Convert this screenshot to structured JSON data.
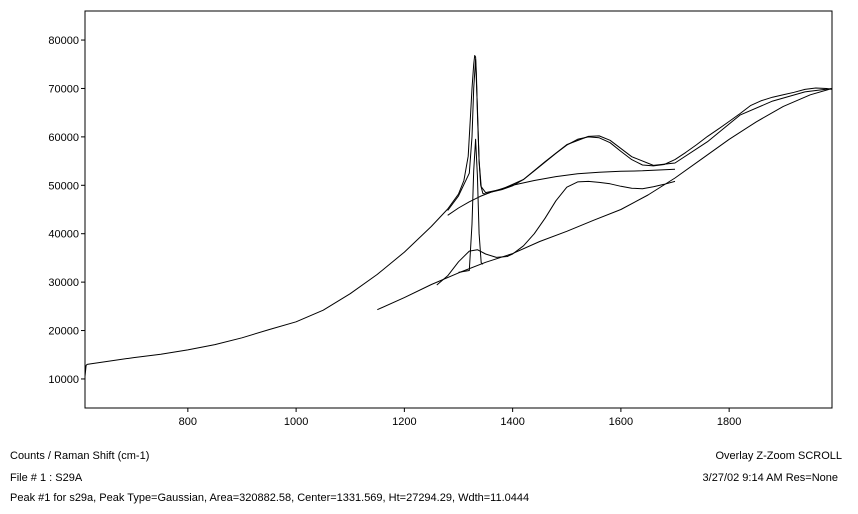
{
  "chart_data": {
    "type": "line",
    "xlim": [
      610,
      1990
    ],
    "ylim": [
      4000,
      86000
    ],
    "x_ticks": [
      "800",
      "1000",
      "1200",
      "1400",
      "1600",
      "1800"
    ],
    "y_ticks": [
      "10000",
      "20000",
      "30000",
      "40000",
      "50000",
      "60000",
      "70000",
      "80000"
    ],
    "grid": false,
    "series": [
      {
        "role": "spectrum",
        "x": [
          610,
          612,
          614,
          620,
          650,
          700,
          750,
          800,
          850,
          900,
          950,
          1000,
          1050,
          1100,
          1150,
          1200,
          1250,
          1280,
          1300,
          1310,
          1318,
          1322,
          1325,
          1328,
          1330,
          1331.5,
          1333,
          1335,
          1338,
          1341,
          1345,
          1350,
          1360,
          1380,
          1400,
          1420,
          1440,
          1460,
          1480,
          1500,
          1520,
          1540,
          1560,
          1580,
          1600,
          1620,
          1640,
          1660,
          1680,
          1700,
          1720,
          1740,
          1760,
          1780,
          1800,
          1820,
          1840,
          1860,
          1880,
          1900,
          1920,
          1940,
          1960,
          1980,
          1990
        ],
        "y": [
          10500,
          12800,
          13000,
          13100,
          13600,
          14400,
          15100,
          16000,
          17100,
          18500,
          20200,
          21800,
          24200,
          27600,
          31600,
          36200,
          41500,
          45100,
          48200,
          51000,
          56000,
          64000,
          70000,
          75000,
          76800,
          76500,
          73000,
          65000,
          55000,
          50000,
          48300,
          48200,
          48600,
          49100,
          49900,
          51200,
          53000,
          54800,
          56600,
          58300,
          59500,
          60000,
          59800,
          58800,
          57000,
          55300,
          54200,
          54000,
          54300,
          55300,
          56800,
          58400,
          60100,
          61600,
          63200,
          64800,
          66500,
          67500,
          68200,
          68700,
          69200,
          69800,
          70100,
          70000,
          69800
        ]
      },
      {
        "role": "fit-envelope",
        "x": [
          1280,
          1300,
          1320,
          1325,
          1328,
          1331.5,
          1335,
          1338,
          1342,
          1350,
          1380,
          1420,
          1460,
          1500,
          1540,
          1560,
          1580,
          1620,
          1660,
          1700,
          1760,
          1820,
          1880,
          1940,
          1990
        ],
        "y": [
          44800,
          47800,
          52500,
          60000,
          70000,
          76000,
          66000,
          55000,
          49700,
          48500,
          49200,
          51200,
          54900,
          58400,
          60100,
          60200,
          59300,
          55900,
          54100,
          54600,
          59000,
          64500,
          67400,
          69300,
          70000
        ]
      },
      {
        "role": "peak-baseline",
        "x": [
          1280,
          1300,
          1320,
          1340,
          1360,
          1380,
          1400,
          1440,
          1480,
          1520,
          1560,
          1600,
          1640,
          1680,
          1700
        ],
        "y": [
          43800,
          45300,
          46600,
          47700,
          48600,
          49300,
          50000,
          51000,
          51800,
          52400,
          52700,
          52900,
          53000,
          53200,
          53300
        ]
      },
      {
        "role": "peak-sum",
        "x": [
          1260,
          1280,
          1300,
          1320,
          1335,
          1350,
          1370,
          1390,
          1400,
          1420,
          1440,
          1460,
          1480,
          1500,
          1520,
          1540,
          1560,
          1580,
          1600,
          1620,
          1640,
          1660,
          1680,
          1700
        ],
        "y": [
          29400,
          31300,
          34200,
          36400,
          36700,
          35800,
          35100,
          35300,
          35800,
          37500,
          40000,
          43200,
          46800,
          49600,
          50700,
          50800,
          50600,
          50300,
          49800,
          49400,
          49300,
          49700,
          50200,
          50800
        ]
      },
      {
        "role": "peak-1",
        "x": [
          1300,
          1320,
          1325,
          1328,
          1331.5,
          1335,
          1338,
          1342,
          1345
        ],
        "y": [
          32000,
          32400,
          42000,
          53000,
          59500,
          52000,
          40000,
          34000,
          33700
        ]
      },
      {
        "role": "baseline",
        "x": [
          1150,
          1200,
          1250,
          1300,
          1350,
          1400,
          1450,
          1500,
          1550,
          1600,
          1650,
          1700,
          1750,
          1800,
          1850,
          1900,
          1950,
          1990
        ],
        "y": [
          24300,
          26800,
          29500,
          31900,
          34100,
          35900,
          38400,
          40500,
          42800,
          45000,
          48000,
          51500,
          55500,
          59500,
          63100,
          66300,
          68700,
          70000
        ]
      }
    ]
  },
  "footer": {
    "axes_label": "Counts / Raman Shift (cm-1)",
    "file_label": "File # 1 : S29A",
    "peak_info": "Peak #1 for s29a, Peak Type=Gaussian, Area=320882.58, Center=1331.569, Ht=27294.29, Wdth=11.0444",
    "mode_label": "Overlay Z-Zoom SCROLL",
    "date_label": "3/27/02  9:14 AM  Res=None"
  }
}
